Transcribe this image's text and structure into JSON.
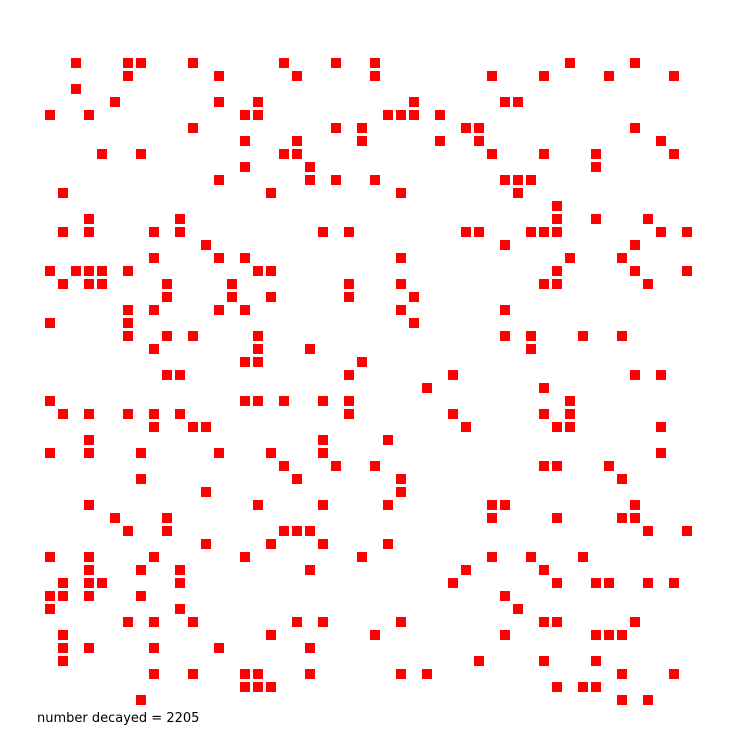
{
  "chart_data": {
    "type": "scatter",
    "marker": "square",
    "color": "#ff0000",
    "grid": false,
    "axes_visible": false,
    "xlim": [
      0,
      50
    ],
    "ylim": [
      0,
      50
    ],
    "points": [
      [
        2,
        49
      ],
      [
        6,
        49
      ],
      [
        7,
        49
      ],
      [
        11,
        49
      ],
      [
        18,
        49
      ],
      [
        22,
        49
      ],
      [
        25,
        49
      ],
      [
        40,
        49
      ],
      [
        45,
        49
      ],
      [
        6,
        48
      ],
      [
        13,
        48
      ],
      [
        19,
        48
      ],
      [
        25,
        48
      ],
      [
        34,
        48
      ],
      [
        38,
        48
      ],
      [
        43,
        48
      ],
      [
        48,
        48
      ],
      [
        2,
        47
      ],
      [
        5,
        46
      ],
      [
        13,
        46
      ],
      [
        16,
        46
      ],
      [
        28,
        46
      ],
      [
        35,
        46
      ],
      [
        36,
        46
      ],
      [
        0,
        45
      ],
      [
        3,
        45
      ],
      [
        15,
        45
      ],
      [
        16,
        45
      ],
      [
        26,
        45
      ],
      [
        27,
        45
      ],
      [
        28,
        45
      ],
      [
        30,
        45
      ],
      [
        11,
        44
      ],
      [
        22,
        44
      ],
      [
        24,
        44
      ],
      [
        32,
        44
      ],
      [
        33,
        44
      ],
      [
        45,
        44
      ],
      [
        15,
        43
      ],
      [
        19,
        43
      ],
      [
        24,
        43
      ],
      [
        30,
        43
      ],
      [
        33,
        43
      ],
      [
        47,
        43
      ],
      [
        4,
        42
      ],
      [
        7,
        42
      ],
      [
        18,
        42
      ],
      [
        19,
        42
      ],
      [
        34,
        42
      ],
      [
        38,
        42
      ],
      [
        42,
        42
      ],
      [
        48,
        42
      ],
      [
        15,
        41
      ],
      [
        20,
        41
      ],
      [
        42,
        41
      ],
      [
        13,
        40
      ],
      [
        20,
        40
      ],
      [
        22,
        40
      ],
      [
        25,
        40
      ],
      [
        35,
        40
      ],
      [
        36,
        40
      ],
      [
        37,
        40
      ],
      [
        1,
        39
      ],
      [
        17,
        39
      ],
      [
        27,
        39
      ],
      [
        36,
        39
      ],
      [
        39,
        38
      ],
      [
        3,
        37
      ],
      [
        10,
        37
      ],
      [
        39,
        37
      ],
      [
        42,
        37
      ],
      [
        46,
        37
      ],
      [
        1,
        36
      ],
      [
        3,
        36
      ],
      [
        8,
        36
      ],
      [
        10,
        36
      ],
      [
        21,
        36
      ],
      [
        23,
        36
      ],
      [
        32,
        36
      ],
      [
        33,
        36
      ],
      [
        37,
        36
      ],
      [
        38,
        36
      ],
      [
        39,
        36
      ],
      [
        47,
        36
      ],
      [
        49,
        36
      ],
      [
        12,
        35
      ],
      [
        35,
        35
      ],
      [
        45,
        35
      ],
      [
        8,
        34
      ],
      [
        13,
        34
      ],
      [
        15,
        34
      ],
      [
        27,
        34
      ],
      [
        40,
        34
      ],
      [
        44,
        34
      ],
      [
        0,
        33
      ],
      [
        2,
        33
      ],
      [
        3,
        33
      ],
      [
        4,
        33
      ],
      [
        6,
        33
      ],
      [
        16,
        33
      ],
      [
        17,
        33
      ],
      [
        39,
        33
      ],
      [
        45,
        33
      ],
      [
        49,
        33
      ],
      [
        1,
        32
      ],
      [
        3,
        32
      ],
      [
        4,
        32
      ],
      [
        9,
        32
      ],
      [
        14,
        32
      ],
      [
        23,
        32
      ],
      [
        27,
        32
      ],
      [
        38,
        32
      ],
      [
        39,
        32
      ],
      [
        46,
        32
      ],
      [
        9,
        31
      ],
      [
        14,
        31
      ],
      [
        17,
        31
      ],
      [
        23,
        31
      ],
      [
        28,
        31
      ],
      [
        6,
        30
      ],
      [
        8,
        30
      ],
      [
        13,
        30
      ],
      [
        15,
        30
      ],
      [
        27,
        30
      ],
      [
        35,
        30
      ],
      [
        0,
        29
      ],
      [
        6,
        29
      ],
      [
        28,
        29
      ],
      [
        6,
        28
      ],
      [
        9,
        28
      ],
      [
        11,
        28
      ],
      [
        16,
        28
      ],
      [
        35,
        28
      ],
      [
        37,
        28
      ],
      [
        41,
        28
      ],
      [
        44,
        28
      ],
      [
        8,
        27
      ],
      [
        16,
        27
      ],
      [
        20,
        27
      ],
      [
        37,
        27
      ],
      [
        15,
        26
      ],
      [
        16,
        26
      ],
      [
        24,
        26
      ],
      [
        9,
        25
      ],
      [
        10,
        25
      ],
      [
        23,
        25
      ],
      [
        31,
        25
      ],
      [
        45,
        25
      ],
      [
        47,
        25
      ],
      [
        29,
        24
      ],
      [
        38,
        24
      ],
      [
        0,
        23
      ],
      [
        15,
        23
      ],
      [
        16,
        23
      ],
      [
        18,
        23
      ],
      [
        21,
        23
      ],
      [
        23,
        23
      ],
      [
        40,
        23
      ],
      [
        1,
        22
      ],
      [
        3,
        22
      ],
      [
        6,
        22
      ],
      [
        8,
        22
      ],
      [
        10,
        22
      ],
      [
        23,
        22
      ],
      [
        31,
        22
      ],
      [
        38,
        22
      ],
      [
        40,
        22
      ],
      [
        8,
        21
      ],
      [
        11,
        21
      ],
      [
        12,
        21
      ],
      [
        32,
        21
      ],
      [
        39,
        21
      ],
      [
        40,
        21
      ],
      [
        47,
        21
      ],
      [
        3,
        20
      ],
      [
        21,
        20
      ],
      [
        26,
        20
      ],
      [
        0,
        19
      ],
      [
        3,
        19
      ],
      [
        7,
        19
      ],
      [
        13,
        19
      ],
      [
        17,
        19
      ],
      [
        21,
        19
      ],
      [
        47,
        19
      ],
      [
        18,
        18
      ],
      [
        22,
        18
      ],
      [
        25,
        18
      ],
      [
        38,
        18
      ],
      [
        39,
        18
      ],
      [
        43,
        18
      ],
      [
        7,
        17
      ],
      [
        19,
        17
      ],
      [
        27,
        17
      ],
      [
        44,
        17
      ],
      [
        12,
        16
      ],
      [
        27,
        16
      ],
      [
        3,
        15
      ],
      [
        16,
        15
      ],
      [
        21,
        15
      ],
      [
        26,
        15
      ],
      [
        34,
        15
      ],
      [
        35,
        15
      ],
      [
        45,
        15
      ],
      [
        5,
        14
      ],
      [
        9,
        14
      ],
      [
        34,
        14
      ],
      [
        39,
        14
      ],
      [
        44,
        14
      ],
      [
        45,
        14
      ],
      [
        6,
        13
      ],
      [
        9,
        13
      ],
      [
        18,
        13
      ],
      [
        19,
        13
      ],
      [
        20,
        13
      ],
      [
        46,
        13
      ],
      [
        49,
        13
      ],
      [
        12,
        12
      ],
      [
        17,
        12
      ],
      [
        21,
        12
      ],
      [
        26,
        12
      ],
      [
        0,
        11
      ],
      [
        3,
        11
      ],
      [
        8,
        11
      ],
      [
        15,
        11
      ],
      [
        24,
        11
      ],
      [
        34,
        11
      ],
      [
        37,
        11
      ],
      [
        41,
        11
      ],
      [
        3,
        10
      ],
      [
        7,
        10
      ],
      [
        10,
        10
      ],
      [
        20,
        10
      ],
      [
        32,
        10
      ],
      [
        38,
        10
      ],
      [
        1,
        9
      ],
      [
        3,
        9
      ],
      [
        4,
        9
      ],
      [
        10,
        9
      ],
      [
        31,
        9
      ],
      [
        39,
        9
      ],
      [
        42,
        9
      ],
      [
        43,
        9
      ],
      [
        46,
        9
      ],
      [
        48,
        9
      ],
      [
        0,
        8
      ],
      [
        1,
        8
      ],
      [
        3,
        8
      ],
      [
        7,
        8
      ],
      [
        35,
        8
      ],
      [
        0,
        7
      ],
      [
        10,
        7
      ],
      [
        36,
        7
      ],
      [
        6,
        6
      ],
      [
        8,
        6
      ],
      [
        11,
        6
      ],
      [
        19,
        6
      ],
      [
        21,
        6
      ],
      [
        27,
        6
      ],
      [
        38,
        6
      ],
      [
        39,
        6
      ],
      [
        45,
        6
      ],
      [
        1,
        5
      ],
      [
        17,
        5
      ],
      [
        25,
        5
      ],
      [
        35,
        5
      ],
      [
        42,
        5
      ],
      [
        43,
        5
      ],
      [
        44,
        5
      ],
      [
        1,
        4
      ],
      [
        3,
        4
      ],
      [
        8,
        4
      ],
      [
        13,
        4
      ],
      [
        20,
        4
      ],
      [
        1,
        3
      ],
      [
        33,
        3
      ],
      [
        38,
        3
      ],
      [
        42,
        3
      ],
      [
        8,
        2
      ],
      [
        11,
        2
      ],
      [
        15,
        2
      ],
      [
        16,
        2
      ],
      [
        20,
        2
      ],
      [
        27,
        2
      ],
      [
        29,
        2
      ],
      [
        44,
        2
      ],
      [
        48,
        2
      ],
      [
        15,
        1
      ],
      [
        16,
        1
      ],
      [
        17,
        1
      ],
      [
        39,
        1
      ],
      [
        41,
        1
      ],
      [
        42,
        1
      ],
      [
        7,
        0
      ],
      [
        44,
        0
      ],
      [
        46,
        0
      ]
    ]
  },
  "annotation": {
    "decayed_label": "number decayed = 2205"
  }
}
